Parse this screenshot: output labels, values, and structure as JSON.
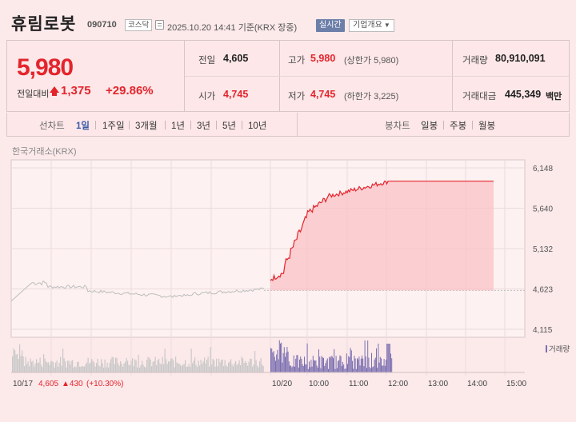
{
  "header": {
    "name": "휴림로봇",
    "code": "090710",
    "market": "코스닥",
    "datetime": "2025.10.20 14:41  기준(KRX 장중)",
    "realtime_label": "실시간",
    "company_label": "기업개요"
  },
  "price": {
    "current": "5,980",
    "change_label": "전일대비",
    "change": "1,375",
    "change_pct": "+29.86%"
  },
  "stats": {
    "prev_close": {
      "label": "전일",
      "value": "4,605"
    },
    "high": {
      "label": "고가",
      "value": "5,980",
      "sub": "(상한가 5,980)"
    },
    "volume": {
      "label": "거래량",
      "value": "80,910,091"
    },
    "open": {
      "label": "시가",
      "value": "4,745"
    },
    "low": {
      "label": "저가",
      "value": "4,745",
      "sub": "(하한가 3,225)"
    },
    "amount": {
      "label": "거래대금",
      "value": "445,349",
      "unit": "백만"
    }
  },
  "periods": {
    "line_label": "선차트",
    "line_items": [
      "1일",
      "1주일",
      "3개월",
      "1년",
      "3년",
      "5년",
      "10년"
    ],
    "active": "1일",
    "candle_label": "봉차트",
    "candle_items": [
      "일봉",
      "주봉",
      "월봉"
    ]
  },
  "chart": {
    "exchange": "한국거래소(KRX)",
    "prev_day_label": "10/17",
    "prev_day_close": "4,605",
    "prev_day_change": "▲430",
    "prev_day_pct": "(+10.30%)",
    "volume_legend": "거래량"
  },
  "chart_data": {
    "type": "line",
    "y_ticks": [
      "6,148",
      "5,640",
      "5,132",
      "4,623",
      "4,115"
    ],
    "ylim": [
      4115,
      6148
    ],
    "x_ticks": [
      "10/20",
      "10:00",
      "11:00",
      "12:00",
      "13:00",
      "14:00",
      "15:00"
    ],
    "baseline": 4605,
    "prev_day": {
      "name": "10/17",
      "color": "#c0c0c0"
    },
    "today": {
      "name": "10/20",
      "color": "#e4242c",
      "open": 4745,
      "last": 5980
    },
    "volume_color": "#7b6fb0"
  },
  "colors": {
    "up": "#e4242c",
    "background": "#fce9ea",
    "accent": "#6c7fa8"
  }
}
